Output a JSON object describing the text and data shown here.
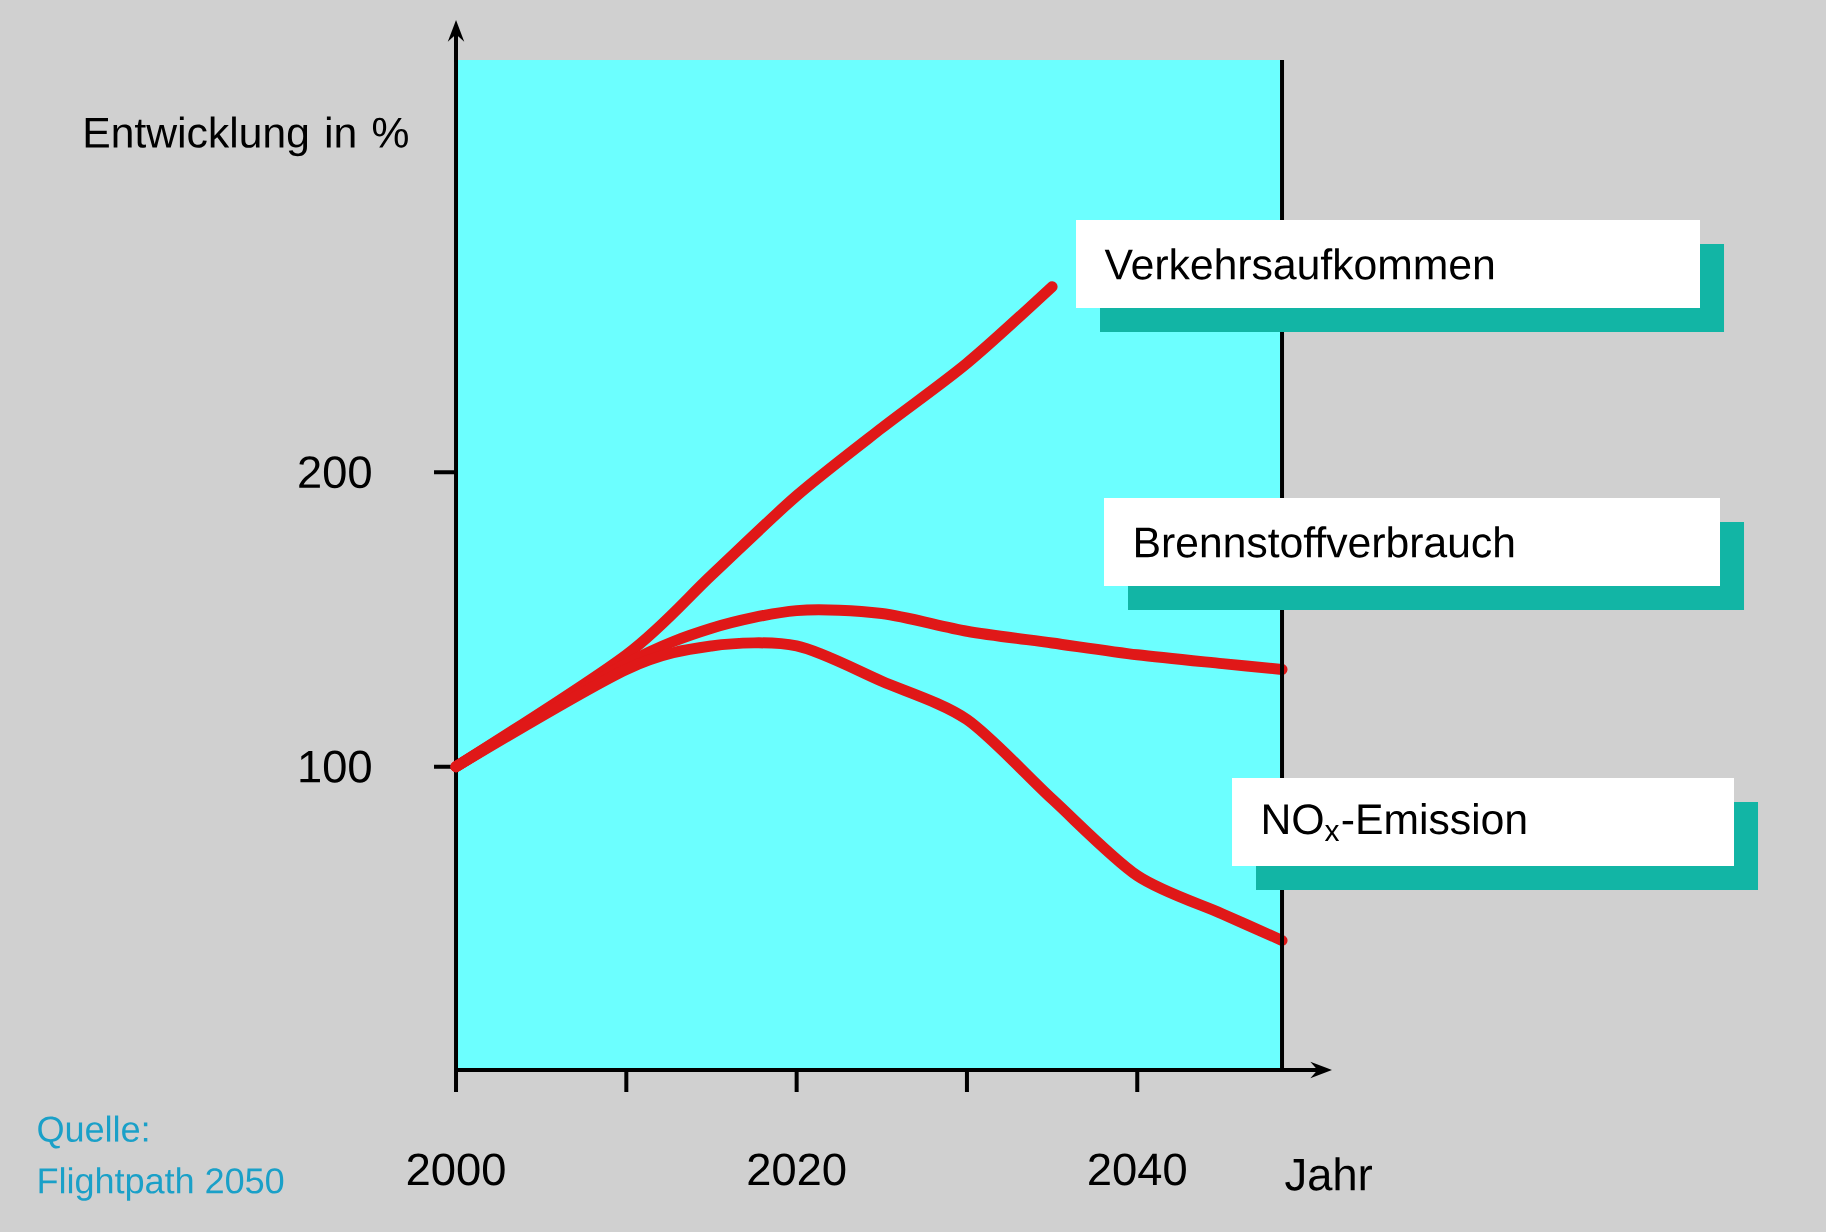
{
  "chart_data": {
    "type": "line",
    "xlabel": "Jahr",
    "ylabel": "Entwicklung in %",
    "annotations": [
      "Quelle:",
      "Flightpath 2050"
    ],
    "x": [
      2000,
      2010,
      2015,
      2020,
      2025,
      2030,
      2035,
      2040,
      2045,
      2048.5
    ],
    "xlim": [
      2000,
      2048.5
    ],
    "xticks": [
      2000,
      {
        "value": 2010,
        "label": null
      },
      2020,
      {
        "value": 2030,
        "label": null
      },
      2040
    ],
    "ylim": [
      -3,
      340
    ],
    "yticks": [
      100,
      200
    ],
    "series": [
      {
        "name": "Verkehrsaufkommen",
        "color": "#e01818",
        "values": [
          100,
          138,
          165,
          192,
          215,
          237,
          263,
          null,
          null,
          null
        ]
      },
      {
        "name": "Brennstoffverbrauch",
        "color": "#e01818",
        "values": [
          100,
          135,
          147,
          153,
          152,
          146,
          142,
          138,
          135,
          133
        ]
      },
      {
        "name": "NO$_{x}$-Emission",
        "color": "#e01818",
        "values": [
          100,
          133,
          141,
          141,
          129,
          116,
          89,
          63,
          50,
          41
        ]
      }
    ]
  }
}
